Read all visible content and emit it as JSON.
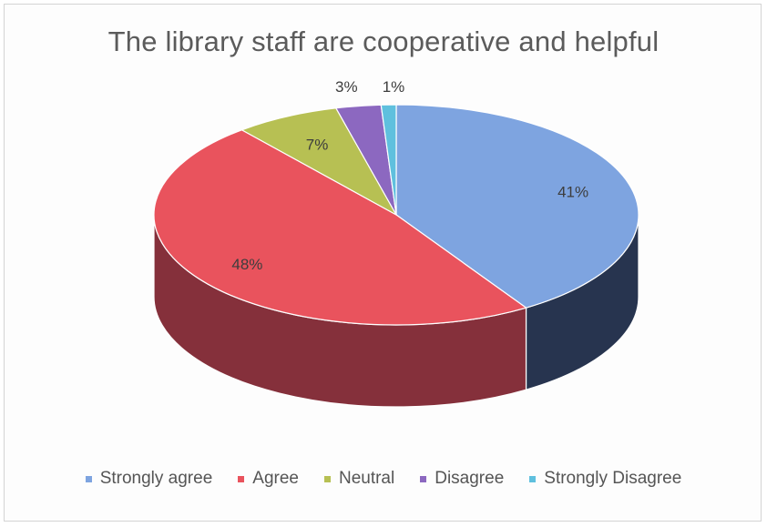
{
  "chart_data": {
    "type": "pie",
    "title": "The library staff are cooperative and helpful",
    "slices": [
      {
        "name": "Strongly agree",
        "value": 41,
        "label": "41%",
        "color": "#7ea4e0",
        "side_color": "#27344f"
      },
      {
        "name": "Agree",
        "value": 48,
        "label": "48%",
        "color": "#e9535d",
        "side_color": "#85303b"
      },
      {
        "name": "Neutral",
        "value": 7,
        "label": "7%",
        "color": "#b7c053",
        "side_color": "#67702b"
      },
      {
        "name": "Disagree",
        "value": 3,
        "label": "3%",
        "color": "#8c68c0",
        "side_color": "#4b3470"
      },
      {
        "name": "Strongly Disagree",
        "value": 1,
        "label": "1%",
        "color": "#5fc0de",
        "side_color": "#2c6f84"
      }
    ],
    "legend_position": "bottom",
    "start_angle_deg": 0,
    "direction": "clockwise",
    "style": "3d"
  }
}
